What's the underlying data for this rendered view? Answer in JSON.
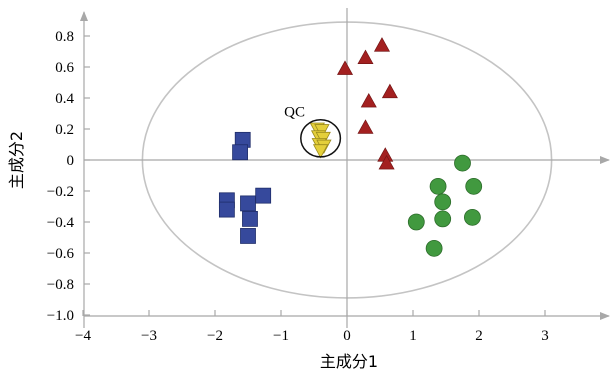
{
  "chart_data": {
    "type": "scatter",
    "xlabel": "主成分1",
    "ylabel": "主成分2",
    "xlim": [
      -4,
      3.9
    ],
    "ylim": [
      -1.0,
      0.95
    ],
    "xticks": [
      -4,
      -3,
      -2,
      -1,
      0,
      1,
      2,
      3
    ],
    "xtick_labels": [
      "−4",
      "−3",
      "−2",
      "−1",
      "0",
      "1",
      "2",
      "3"
    ],
    "yticks": [
      0.8,
      0.6,
      0.4,
      0.2,
      0,
      -0.2,
      -0.4,
      -0.6,
      -0.8,
      -1.0
    ],
    "ytick_labels": [
      "0.8",
      "0.6",
      "0.4",
      "0.2",
      "0",
      "−0.2",
      "−0.4",
      "−0.6",
      "−0.8",
      "−1.0"
    ],
    "grid": false,
    "confidence_ellipse": {
      "center": [
        0,
        0
      ],
      "rx": 3.1,
      "ry": 0.89,
      "color": "#c4c4c4"
    },
    "annotations": [
      {
        "text": "QC",
        "circle_center": [
          -0.4,
          0.14
        ],
        "circle_radius": [
          0.3,
          0.12
        ]
      }
    ],
    "series": [
      {
        "marker": "square",
        "color": "#36499c",
        "points": [
          [
            -1.58,
            0.13
          ],
          [
            -1.62,
            0.05
          ],
          [
            -1.82,
            -0.26
          ],
          [
            -1.82,
            -0.32
          ],
          [
            -1.5,
            -0.28
          ],
          [
            -1.27,
            -0.23
          ],
          [
            -1.47,
            -0.38
          ],
          [
            -1.5,
            -0.49
          ]
        ]
      },
      {
        "marker": "triangle-up",
        "color": "#a32020",
        "points": [
          [
            0.53,
            0.74
          ],
          [
            0.28,
            0.66
          ],
          [
            -0.03,
            0.59
          ],
          [
            0.65,
            0.44
          ],
          [
            0.33,
            0.38
          ],
          [
            0.28,
            0.21
          ],
          [
            0.58,
            0.03
          ],
          [
            0.6,
            -0.02
          ]
        ]
      },
      {
        "marker": "circle",
        "color": "#41993f",
        "points": [
          [
            1.75,
            -0.02
          ],
          [
            1.38,
            -0.17
          ],
          [
            1.92,
            -0.17
          ],
          [
            1.45,
            -0.27
          ],
          [
            1.45,
            -0.38
          ],
          [
            1.9,
            -0.37
          ],
          [
            1.05,
            -0.4
          ],
          [
            1.32,
            -0.57
          ]
        ]
      },
      {
        "marker": "triangle-down",
        "color": "#e4cf3a",
        "points": [
          [
            -0.45,
            0.2
          ],
          [
            -0.38,
            0.19
          ],
          [
            -0.43,
            0.15
          ],
          [
            -0.36,
            0.14
          ],
          [
            -0.42,
            0.1
          ],
          [
            -0.35,
            0.09
          ],
          [
            -0.4,
            0.06
          ]
        ]
      }
    ]
  }
}
